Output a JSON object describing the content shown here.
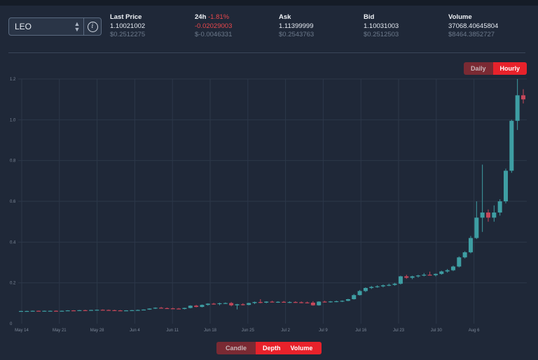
{
  "market": {
    "symbol": "LEO"
  },
  "stats": {
    "last_price": {
      "label": "Last Price",
      "value": "1.10021002",
      "usd": "$0.2512275"
    },
    "change_24h": {
      "label": "24h",
      "percent": "-1.81%",
      "value": "-0.02029003",
      "usd": "$-0.0046331"
    },
    "ask": {
      "label": "Ask",
      "value": "1.11399999",
      "usd": "$0.2543763"
    },
    "bid": {
      "label": "Bid",
      "value": "1.10031003",
      "usd": "$0.2512503"
    },
    "volume": {
      "label": "Volume",
      "value": "37068.40645804",
      "usd": "$8464.3852727"
    }
  },
  "interval_toggle": {
    "daily": "Daily",
    "hourly": "Hourly",
    "selected": "Hourly"
  },
  "view_toggle": {
    "candle": "Candle",
    "depth": "Depth",
    "volume": "Volume",
    "selected": "Candle"
  },
  "colors": {
    "up": "#3e9ea3",
    "down": "#c7475a",
    "grid": "#2c3749",
    "accent": "#e8222b"
  },
  "chart_data": {
    "type": "candlestick",
    "y_ticks": [
      "0",
      "0.2",
      "0.4",
      "0.6",
      "0.8",
      "1.0",
      "1.2"
    ],
    "ylim": [
      0,
      1.2
    ],
    "x_ticks": [
      "May 14",
      "May 21",
      "May 28",
      "Jun 4",
      "Jun 11",
      "Jun 18",
      "Jun 25",
      "Jul 2",
      "Jul 9",
      "Jul 16",
      "Jul 23",
      "Jul 30",
      "Aug 6"
    ],
    "grid": true,
    "candles": [
      {
        "o": 0.062,
        "h": 0.063,
        "l": 0.061,
        "c": 0.062
      },
      {
        "o": 0.062,
        "h": 0.063,
        "l": 0.061,
        "c": 0.062
      },
      {
        "o": 0.062,
        "h": 0.064,
        "l": 0.061,
        "c": 0.063
      },
      {
        "o": 0.063,
        "h": 0.064,
        "l": 0.061,
        "c": 0.062
      },
      {
        "o": 0.062,
        "h": 0.064,
        "l": 0.061,
        "c": 0.063
      },
      {
        "o": 0.063,
        "h": 0.064,
        "l": 0.062,
        "c": 0.063
      },
      {
        "o": 0.063,
        "h": 0.065,
        "l": 0.062,
        "c": 0.062
      },
      {
        "o": 0.062,
        "h": 0.064,
        "l": 0.061,
        "c": 0.063
      },
      {
        "o": 0.063,
        "h": 0.066,
        "l": 0.062,
        "c": 0.065
      },
      {
        "o": 0.065,
        "h": 0.066,
        "l": 0.063,
        "c": 0.064
      },
      {
        "o": 0.064,
        "h": 0.067,
        "l": 0.063,
        "c": 0.066
      },
      {
        "o": 0.066,
        "h": 0.068,
        "l": 0.064,
        "c": 0.065
      },
      {
        "o": 0.065,
        "h": 0.068,
        "l": 0.064,
        "c": 0.067
      },
      {
        "o": 0.067,
        "h": 0.069,
        "l": 0.065,
        "c": 0.068
      },
      {
        "o": 0.068,
        "h": 0.07,
        "l": 0.066,
        "c": 0.067
      },
      {
        "o": 0.067,
        "h": 0.069,
        "l": 0.065,
        "c": 0.066
      },
      {
        "o": 0.066,
        "h": 0.068,
        "l": 0.063,
        "c": 0.065
      },
      {
        "o": 0.065,
        "h": 0.067,
        "l": 0.063,
        "c": 0.064
      },
      {
        "o": 0.064,
        "h": 0.066,
        "l": 0.062,
        "c": 0.065
      },
      {
        "o": 0.065,
        "h": 0.067,
        "l": 0.063,
        "c": 0.066
      },
      {
        "o": 0.066,
        "h": 0.069,
        "l": 0.064,
        "c": 0.067
      },
      {
        "o": 0.067,
        "h": 0.07,
        "l": 0.065,
        "c": 0.069
      },
      {
        "o": 0.069,
        "h": 0.075,
        "l": 0.068,
        "c": 0.074
      },
      {
        "o": 0.074,
        "h": 0.08,
        "l": 0.072,
        "c": 0.078
      },
      {
        "o": 0.078,
        "h": 0.082,
        "l": 0.074,
        "c": 0.076
      },
      {
        "o": 0.076,
        "h": 0.079,
        "l": 0.073,
        "c": 0.075
      },
      {
        "o": 0.075,
        "h": 0.078,
        "l": 0.072,
        "c": 0.074
      },
      {
        "o": 0.074,
        "h": 0.077,
        "l": 0.071,
        "c": 0.072
      },
      {
        "o": 0.072,
        "h": 0.078,
        "l": 0.07,
        "c": 0.077
      },
      {
        "o": 0.077,
        "h": 0.09,
        "l": 0.075,
        "c": 0.088
      },
      {
        "o": 0.088,
        "h": 0.092,
        "l": 0.08,
        "c": 0.082
      },
      {
        "o": 0.082,
        "h": 0.094,
        "l": 0.08,
        "c": 0.092
      },
      {
        "o": 0.092,
        "h": 0.1,
        "l": 0.088,
        "c": 0.098
      },
      {
        "o": 0.098,
        "h": 0.102,
        "l": 0.093,
        "c": 0.096
      },
      {
        "o": 0.096,
        "h": 0.103,
        "l": 0.09,
        "c": 0.1
      },
      {
        "o": 0.1,
        "h": 0.104,
        "l": 0.097,
        "c": 0.101
      },
      {
        "o": 0.101,
        "h": 0.106,
        "l": 0.085,
        "c": 0.09
      },
      {
        "o": 0.09,
        "h": 0.097,
        "l": 0.07,
        "c": 0.095
      },
      {
        "o": 0.095,
        "h": 0.1,
        "l": 0.089,
        "c": 0.092
      },
      {
        "o": 0.092,
        "h": 0.103,
        "l": 0.09,
        "c": 0.101
      },
      {
        "o": 0.101,
        "h": 0.108,
        "l": 0.096,
        "c": 0.106
      },
      {
        "o": 0.106,
        "h": 0.12,
        "l": 0.1,
        "c": 0.103
      },
      {
        "o": 0.103,
        "h": 0.11,
        "l": 0.1,
        "c": 0.108
      },
      {
        "o": 0.108,
        "h": 0.112,
        "l": 0.104,
        "c": 0.106
      },
      {
        "o": 0.106,
        "h": 0.11,
        "l": 0.102,
        "c": 0.107
      },
      {
        "o": 0.107,
        "h": 0.111,
        "l": 0.103,
        "c": 0.105
      },
      {
        "o": 0.105,
        "h": 0.109,
        "l": 0.101,
        "c": 0.106
      },
      {
        "o": 0.106,
        "h": 0.11,
        "l": 0.102,
        "c": 0.105
      },
      {
        "o": 0.105,
        "h": 0.109,
        "l": 0.1,
        "c": 0.104
      },
      {
        "o": 0.104,
        "h": 0.108,
        "l": 0.099,
        "c": 0.103
      },
      {
        "o": 0.103,
        "h": 0.11,
        "l": 0.088,
        "c": 0.09
      },
      {
        "o": 0.09,
        "h": 0.11,
        "l": 0.088,
        "c": 0.108
      },
      {
        "o": 0.108,
        "h": 0.112,
        "l": 0.104,
        "c": 0.106
      },
      {
        "o": 0.106,
        "h": 0.111,
        "l": 0.103,
        "c": 0.109
      },
      {
        "o": 0.109,
        "h": 0.113,
        "l": 0.105,
        "c": 0.11
      },
      {
        "o": 0.11,
        "h": 0.114,
        "l": 0.106,
        "c": 0.112
      },
      {
        "o": 0.112,
        "h": 0.122,
        "l": 0.11,
        "c": 0.12
      },
      {
        "o": 0.12,
        "h": 0.145,
        "l": 0.118,
        "c": 0.14
      },
      {
        "o": 0.14,
        "h": 0.165,
        "l": 0.138,
        "c": 0.16
      },
      {
        "o": 0.16,
        "h": 0.178,
        "l": 0.155,
        "c": 0.175
      },
      {
        "o": 0.175,
        "h": 0.185,
        "l": 0.17,
        "c": 0.18
      },
      {
        "o": 0.18,
        "h": 0.188,
        "l": 0.176,
        "c": 0.183
      },
      {
        "o": 0.183,
        "h": 0.192,
        "l": 0.178,
        "c": 0.188
      },
      {
        "o": 0.188,
        "h": 0.196,
        "l": 0.184,
        "c": 0.19
      },
      {
        "o": 0.19,
        "h": 0.2,
        "l": 0.186,
        "c": 0.196
      },
      {
        "o": 0.196,
        "h": 0.235,
        "l": 0.192,
        "c": 0.232
      },
      {
        "o": 0.232,
        "h": 0.24,
        "l": 0.22,
        "c": 0.225
      },
      {
        "o": 0.225,
        "h": 0.235,
        "l": 0.218,
        "c": 0.232
      },
      {
        "o": 0.232,
        "h": 0.24,
        "l": 0.226,
        "c": 0.236
      },
      {
        "o": 0.236,
        "h": 0.248,
        "l": 0.232,
        "c": 0.24
      },
      {
        "o": 0.24,
        "h": 0.255,
        "l": 0.236,
        "c": 0.238
      },
      {
        "o": 0.238,
        "h": 0.246,
        "l": 0.232,
        "c": 0.244
      },
      {
        "o": 0.244,
        "h": 0.26,
        "l": 0.24,
        "c": 0.256
      },
      {
        "o": 0.256,
        "h": 0.268,
        "l": 0.25,
        "c": 0.262
      },
      {
        "o": 0.262,
        "h": 0.285,
        "l": 0.258,
        "c": 0.28
      },
      {
        "o": 0.28,
        "h": 0.33,
        "l": 0.276,
        "c": 0.325
      },
      {
        "o": 0.325,
        "h": 0.355,
        "l": 0.32,
        "c": 0.35
      },
      {
        "o": 0.35,
        "h": 0.43,
        "l": 0.345,
        "c": 0.42
      },
      {
        "o": 0.42,
        "h": 0.6,
        "l": 0.415,
        "c": 0.52
      },
      {
        "o": 0.52,
        "h": 0.78,
        "l": 0.45,
        "c": 0.545
      },
      {
        "o": 0.545,
        "h": 0.56,
        "l": 0.5,
        "c": 0.52
      },
      {
        "o": 0.52,
        "h": 0.58,
        "l": 0.5,
        "c": 0.545
      },
      {
        "o": 0.545,
        "h": 0.61,
        "l": 0.53,
        "c": 0.6
      },
      {
        "o": 0.6,
        "h": 0.76,
        "l": 0.59,
        "c": 0.75
      },
      {
        "o": 0.75,
        "h": 1.0,
        "l": 0.74,
        "c": 0.995
      },
      {
        "o": 0.995,
        "h": 1.2,
        "l": 0.95,
        "c": 1.12
      },
      {
        "o": 1.12,
        "h": 1.15,
        "l": 1.08,
        "c": 1.1
      }
    ]
  }
}
